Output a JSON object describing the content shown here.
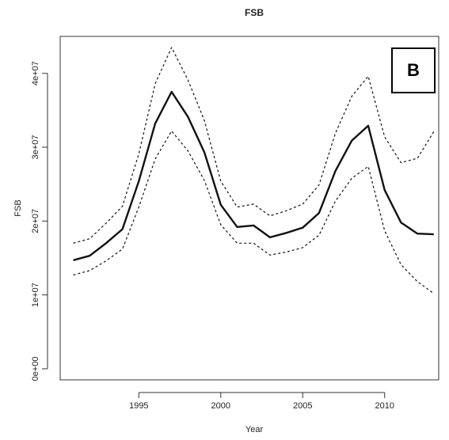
{
  "chart_data": {
    "type": "line",
    "title": "FSB",
    "xlabel": "Year",
    "ylabel": "FSB",
    "xlim": [
      1990.2,
      2013.3
    ],
    "ylim": [
      -1500000,
      45000000
    ],
    "x_ticks": [
      1995,
      2000,
      2005,
      2010
    ],
    "x_tick_labels": [
      "1995",
      "2000",
      "2005",
      "2010"
    ],
    "y_ticks": [
      0,
      10000000,
      20000000,
      30000000,
      40000000
    ],
    "y_tick_labels": [
      "0e+00",
      "1e+07",
      "2e+07",
      "3e+07",
      "4e+07"
    ],
    "x": [
      1991,
      1992,
      1993,
      1994,
      1995,
      1996,
      1997,
      1998,
      1999,
      2000,
      2001,
      2002,
      2003,
      2004,
      2005,
      2006,
      2007,
      2008,
      2009,
      2010,
      2011,
      2012,
      2013
    ],
    "series": [
      {
        "role": "estimate",
        "style": "solid",
        "values": [
          14700000,
          15300000,
          17000000,
          18900000,
          25400000,
          33200000,
          37500000,
          34100000,
          29300000,
          22200000,
          19200000,
          19400000,
          17800000,
          18400000,
          19100000,
          21100000,
          26800000,
          30900000,
          32900000,
          24200000,
          19800000,
          18300000,
          18200000
        ]
      },
      {
        "role": "upper",
        "style": "dashed",
        "values": [
          17000000,
          17600000,
          19700000,
          22000000,
          29100000,
          38600000,
          43500000,
          39100000,
          33600000,
          25400000,
          21900000,
          22300000,
          20700000,
          21400000,
          22300000,
          24900000,
          31900000,
          36900000,
          39600000,
          31400000,
          27900000,
          28500000,
          32100000
        ]
      },
      {
        "role": "lower",
        "style": "dashed",
        "values": [
          12700000,
          13300000,
          14600000,
          16200000,
          21900000,
          28400000,
          32200000,
          29500000,
          25500000,
          19500000,
          17000000,
          17000000,
          15400000,
          15800000,
          16400000,
          18100000,
          22700000,
          25800000,
          27400000,
          18700000,
          14100000,
          11800000,
          10200000
        ]
      }
    ],
    "grid": false,
    "legend": "none"
  },
  "panel_label": "B"
}
